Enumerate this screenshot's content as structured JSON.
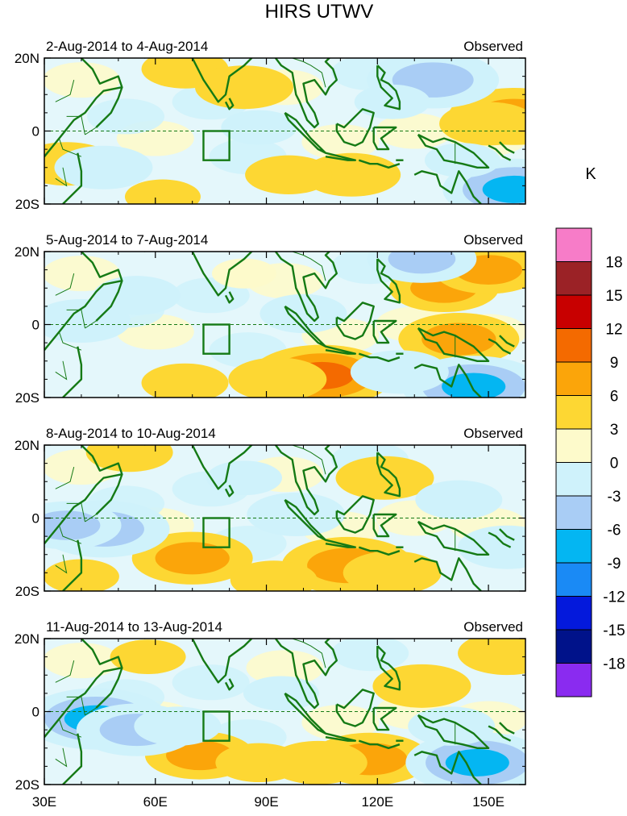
{
  "title": "HIRS UTWV",
  "chart_data": {
    "type": "heatmap",
    "title": "HIRS UTWV",
    "units": "K",
    "x_ticks": [
      "30E",
      "60E",
      "90E",
      "120E",
      "150E"
    ],
    "x_tick_values": [
      30,
      60,
      90,
      120,
      150
    ],
    "y_ticks": [
      "20N",
      "0",
      "20S"
    ],
    "y_tick_values": [
      20,
      0,
      -20
    ],
    "xlim": [
      30,
      160
    ],
    "ylim": [
      -20,
      20
    ],
    "colorbar": {
      "labels": [
        "18",
        "15",
        "12",
        "9",
        "6",
        "3",
        "0",
        "-3",
        "-6",
        "-9",
        "-12",
        "-15",
        "-18"
      ],
      "colors": [
        "#f77cc8",
        "#9b2226",
        "#c80000",
        "#f46a00",
        "#fba50a",
        "#fdd733",
        "#fdfacb",
        "#cff2fb",
        "#a9cdf5",
        "#04b6f2",
        "#1a8af5",
        "#0419dc",
        "#00128a",
        "#8a2bf0"
      ]
    },
    "box_region": {
      "lon": [
        73,
        80
      ],
      "lat": [
        -8,
        0
      ]
    },
    "panels": [
      {
        "period": "2-Aug-2014 to 4-Aug-2014",
        "label": "Observed",
        "anomalies": [
          {
            "lon": 36,
            "lat": -9,
            "value": 5
          },
          {
            "lon": 68,
            "lat": 17,
            "value": 4
          },
          {
            "lon": 84,
            "lat": 12,
            "value": 5
          },
          {
            "lon": 113,
            "lat": -12,
            "value": 5
          },
          {
            "lon": 96,
            "lat": -12,
            "value": 4
          },
          {
            "lon": 62,
            "lat": -18,
            "value": 3
          },
          {
            "lon": 157,
            "lat": 4,
            "value": 8
          },
          {
            "lon": 150,
            "lat": 2,
            "value": 5
          },
          {
            "lon": 135,
            "lat": 14,
            "value": -8
          },
          {
            "lon": 157,
            "lat": -16,
            "value": -9
          },
          {
            "lon": 46,
            "lat": -10,
            "value": -5
          },
          {
            "lon": 88,
            "lat": 1,
            "value": -3
          },
          {
            "lon": 124,
            "lat": 8,
            "value": -3
          },
          {
            "lon": 143,
            "lat": -8,
            "value": -3
          }
        ]
      },
      {
        "period": "5-Aug-2014 to 7-Aug-2014",
        "label": "Observed",
        "anomalies": [
          {
            "lon": 105,
            "lat": -14,
            "value": 9
          },
          {
            "lon": 93,
            "lat": -15,
            "value": 5
          },
          {
            "lon": 68,
            "lat": -16,
            "value": 4
          },
          {
            "lon": 138,
            "lat": 10,
            "value": 6
          },
          {
            "lon": 150,
            "lat": 15,
            "value": 6
          },
          {
            "lon": 142,
            "lat": -4,
            "value": 7
          },
          {
            "lon": 146,
            "lat": -17,
            "value": -9
          },
          {
            "lon": 126,
            "lat": -13,
            "value": -5
          },
          {
            "lon": 40,
            "lat": 1,
            "value": -5
          },
          {
            "lon": 55,
            "lat": 8,
            "value": -4
          },
          {
            "lon": 100,
            "lat": 3,
            "value": -4
          },
          {
            "lon": 132,
            "lat": 18,
            "value": -6
          },
          {
            "lon": 84,
            "lat": 14,
            "value": 2
          }
        ]
      },
      {
        "period": "8-Aug-2014 to 10-Aug-2014",
        "label": "Observed",
        "anomalies": [
          {
            "lon": 70,
            "lat": -11,
            "value": 7
          },
          {
            "lon": 112,
            "lat": -13,
            "value": 8
          },
          {
            "lon": 124,
            "lat": -15,
            "value": 5
          },
          {
            "lon": 92,
            "lat": -17,
            "value": 4
          },
          {
            "lon": 53,
            "lat": 18,
            "value": 4
          },
          {
            "lon": 122,
            "lat": 11,
            "value": 5
          },
          {
            "lon": 40,
            "lat": -16,
            "value": 3
          },
          {
            "lon": 46,
            "lat": -3,
            "value": -8
          },
          {
            "lon": 36,
            "lat": -2,
            "value": -6
          },
          {
            "lon": 98,
            "lat": 1,
            "value": -5
          },
          {
            "lon": 142,
            "lat": 5,
            "value": -4
          },
          {
            "lon": 155,
            "lat": -8,
            "value": -5
          },
          {
            "lon": 84,
            "lat": 11,
            "value": -3
          }
        ]
      },
      {
        "period": "11-Aug-2014 to 13-Aug-2014",
        "label": "Observed",
        "anomalies": [
          {
            "lon": 72,
            "lat": -12,
            "value": 6
          },
          {
            "lon": 88,
            "lat": -14,
            "value": 4
          },
          {
            "lon": 118,
            "lat": -13,
            "value": 7
          },
          {
            "lon": 104,
            "lat": -14,
            "value": 5
          },
          {
            "lon": 132,
            "lat": 7,
            "value": 5
          },
          {
            "lon": 155,
            "lat": 16,
            "value": 5
          },
          {
            "lon": 58,
            "lat": 15,
            "value": 3
          },
          {
            "lon": 44,
            "lat": -2,
            "value": -9
          },
          {
            "lon": 55,
            "lat": -5,
            "value": -7
          },
          {
            "lon": 147,
            "lat": -14,
            "value": -9
          },
          {
            "lon": 140,
            "lat": -4,
            "value": -4
          },
          {
            "lon": 94,
            "lat": 5,
            "value": -3
          },
          {
            "lon": 66,
            "lat": -4,
            "value": -4
          }
        ]
      }
    ]
  }
}
